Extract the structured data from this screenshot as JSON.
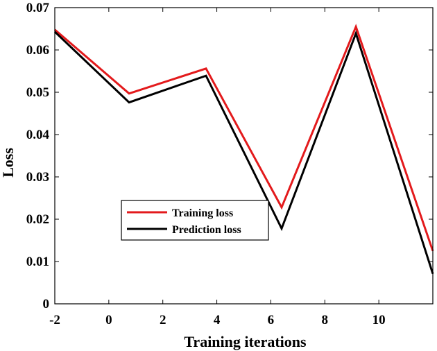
{
  "chart_data": {
    "type": "line",
    "title": "",
    "xlabel": "Training iterations",
    "ylabel": "Loss",
    "xlim": [
      -2,
      12
    ],
    "ylim": [
      0,
      0.07
    ],
    "xticks": [
      "-2",
      "0",
      "2",
      "4",
      "6",
      "8",
      "10"
    ],
    "xtick_values": [
      -2,
      0,
      2,
      4,
      6,
      8,
      10
    ],
    "yticks": [
      "0",
      "0.01",
      "0.02",
      "0.03",
      "0.04",
      "0.05",
      "0.06",
      "0.07"
    ],
    "ytick_values": [
      0,
      0.01,
      0.02,
      0.03,
      0.04,
      0.05,
      0.06,
      0.07
    ],
    "grid": false,
    "legend_position": "lower-left",
    "series": [
      {
        "name": "Training loss",
        "color": "#e31a1c",
        "x": [
          -2,
          0.75,
          3.6,
          6.4,
          9.15,
          12
        ],
        "y": [
          0.0648,
          0.0497,
          0.0556,
          0.0228,
          0.0655,
          0.0125
        ]
      },
      {
        "name": "Prediction loss",
        "color": "#000000",
        "x": [
          -2,
          0.75,
          3.6,
          6.4,
          9.15,
          12
        ],
        "y": [
          0.0643,
          0.0476,
          0.0539,
          0.0178,
          0.0639,
          0.0071
        ]
      }
    ]
  }
}
